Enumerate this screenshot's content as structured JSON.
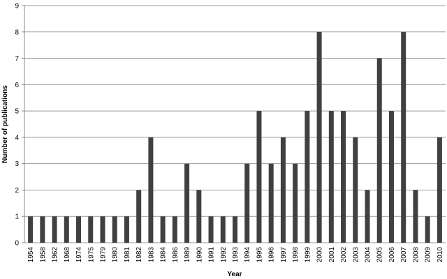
{
  "chart_data": {
    "type": "bar",
    "xlabel": "Year",
    "ylabel": "Number of publications",
    "categories": [
      "1954",
      "1958",
      "1962",
      "1968",
      "1974",
      "1975",
      "1979",
      "1980",
      "1981",
      "1982",
      "1983",
      "1984",
      "1986",
      "1989",
      "1990",
      "1991",
      "1992",
      "1993",
      "1994",
      "1995",
      "1996",
      "1997",
      "1998",
      "1999",
      "2000",
      "2001",
      "2002",
      "2003",
      "2004",
      "2005",
      "2006",
      "2007",
      "2008",
      "2009",
      "2010"
    ],
    "values": [
      1,
      1,
      1,
      1,
      1,
      1,
      1,
      1,
      1,
      2,
      4,
      1,
      1,
      3,
      2,
      1,
      1,
      1,
      3,
      5,
      3,
      4,
      3,
      5,
      8,
      5,
      5,
      4,
      2,
      7,
      5,
      8,
      2,
      1,
      4
    ],
    "color": "#404040",
    "ylim": [
      0,
      9
    ],
    "yticks": [
      0,
      1,
      2,
      3,
      4,
      5,
      6,
      7,
      8,
      9
    ],
    "grid": true
  }
}
